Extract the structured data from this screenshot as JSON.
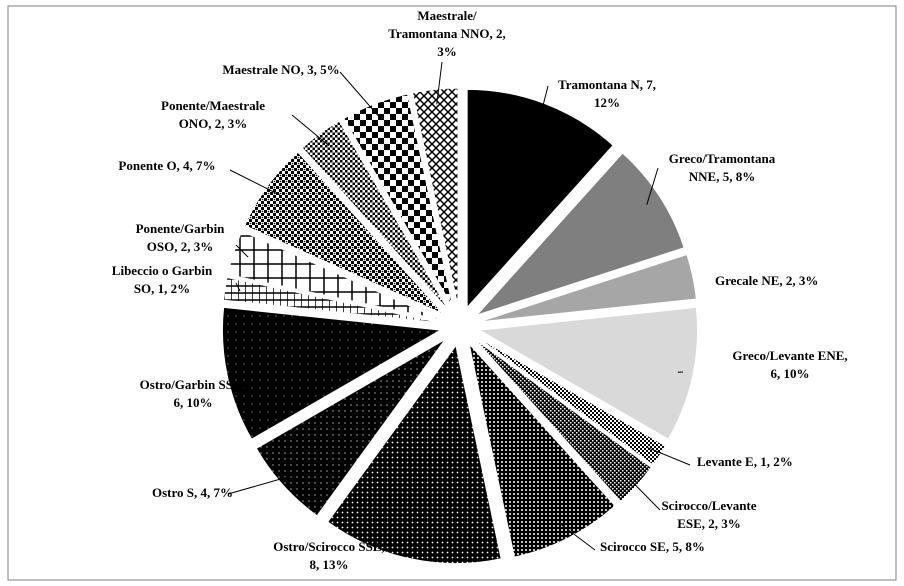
{
  "chart_data": {
    "type": "pie",
    "categories": [
      "Tramontana N",
      "Greco/Tramontana NNE",
      "Grecale NE",
      "Greco/Levante ENE",
      "Levante E",
      "Scirocco/Levante ESE",
      "Scirocco SE",
      "Ostro/Scirocco SSE",
      "Ostro S",
      "Ostro/Garbin SSO",
      "Libeccio o Garbin SO",
      "Ponente/Garbin OSO",
      "Ponente O",
      "Ponente/Maestrale ONO",
      "Maestrale NO",
      "Maestrale/Tramontana NNO"
    ],
    "values": [
      7,
      5,
      2,
      6,
      1,
      2,
      5,
      8,
      4,
      6,
      1,
      2,
      4,
      2,
      3,
      2
    ],
    "value_labels": [
      [
        "Tramontana N, 7,",
        "12%"
      ],
      [
        "Greco/Tramontana",
        "NNE, 5, 8%"
      ],
      [
        "Grecale NE, 2, 3%"
      ],
      [
        "Greco/Levante ENE,",
        "6, 10%"
      ],
      [
        "Levante E, 1, 2%"
      ],
      [
        "Scirocco/Levante",
        "ESE, 2, 3%"
      ],
      [
        "Scirocco SE, 5, 8%"
      ],
      [
        "Ostro/Scirocco SSE,",
        "8, 13%"
      ],
      [
        "Ostro S, 4, 7%"
      ],
      [
        "Ostro/Garbin SSO,",
        "6, 10%"
      ],
      [
        "Libeccio o Garbin",
        "SO, 1, 2%"
      ],
      [
        "Ponente/Garbin",
        "OSO, 2, 3%"
      ],
      [
        "Ponente O, 4, 7%"
      ],
      [
        "Ponente/Maestrale",
        "ONO, 2, 3%"
      ],
      [
        "Maestrale NO, 3, 5%"
      ],
      [
        "Maestrale/",
        "Tramontana NNO, 2,",
        "3%"
      ]
    ],
    "colors": [
      "#000000",
      "#7f7f7f",
      "#a6a6a6",
      "#d9d9d9",
      "#000000",
      "#000000",
      "#000000",
      "#000000",
      "#000000",
      "#000000",
      "#000000",
      "#000000",
      "#000000",
      "#000000",
      "#000000",
      "#000000"
    ]
  }
}
